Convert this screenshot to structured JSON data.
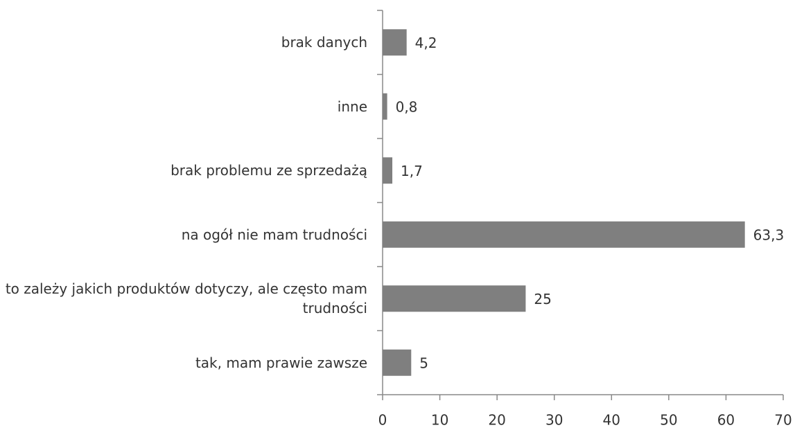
{
  "chart_data": {
    "type": "bar",
    "orientation": "horizontal",
    "categories": [
      "brak danych",
      "inne",
      "brak problemu ze sprzedażą",
      "na ogół nie mam trudności",
      "to zależy jakich produktów dotyczy, ale często mam trudności",
      "tak, mam prawie zawsze"
    ],
    "values": [
      4.2,
      0.8,
      1.7,
      63.3,
      25,
      5
    ],
    "value_labels": [
      "4,2",
      "0,8",
      "1,7",
      "63,3",
      "25",
      "5"
    ],
    "color": "#7f7f7f",
    "xlim": [
      0,
      70
    ],
    "xticks": [
      0,
      10,
      20,
      30,
      40,
      50,
      60,
      70
    ],
    "grid": false
  }
}
